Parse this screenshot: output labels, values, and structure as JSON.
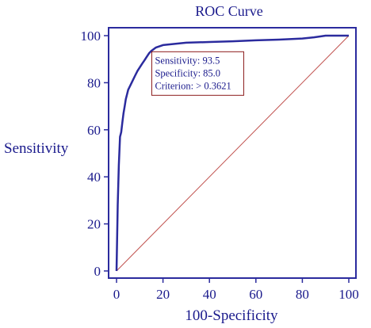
{
  "chart_data": {
    "type": "line",
    "title": "ROC Curve",
    "xlabel": "100-Specificity",
    "ylabel": "Sensitivity",
    "xlim": [
      0,
      100
    ],
    "ylim": [
      0,
      100
    ],
    "xticks": [
      "0",
      "20",
      "40",
      "60",
      "80",
      "100"
    ],
    "yticks": [
      "0",
      "20",
      "40",
      "60",
      "80",
      "100"
    ],
    "grid": false,
    "legend": "none",
    "series": [
      {
        "x": [
          0,
          0.5,
          1,
          1.5,
          2,
          2.5,
          3,
          3.5,
          4,
          4.5,
          5,
          6,
          7,
          8,
          9,
          10,
          11,
          12,
          13,
          14,
          15,
          17,
          20,
          25,
          30,
          40,
          50,
          60,
          70,
          80,
          85,
          88,
          90,
          95,
          100
        ],
        "y": [
          0,
          28,
          45,
          57,
          59,
          63,
          67,
          70,
          73,
          75,
          77,
          79,
          81,
          83,
          85,
          86.5,
          88,
          89.5,
          91,
          92.5,
          93.5,
          95,
          96,
          96.5,
          97,
          97.3,
          97.6,
          98,
          98.3,
          98.8,
          99.3,
          99.7,
          100,
          100,
          100
        ]
      },
      {
        "x": [
          0,
          100
        ],
        "y": [
          0,
          100
        ]
      }
    ],
    "annotation": {
      "lines": [
        "Sensitivity: 93.5",
        "Specificity: 85.0",
        "Criterion: > 0.3621"
      ],
      "point": {
        "x": 15,
        "y": 93.5
      }
    },
    "colors": {
      "curve": "#2b2b9e",
      "diagonal": "#c0504d",
      "text": "#1a1a8c",
      "frame": "#2b2b9e",
      "annotation_border": "#8b1a1a"
    }
  }
}
